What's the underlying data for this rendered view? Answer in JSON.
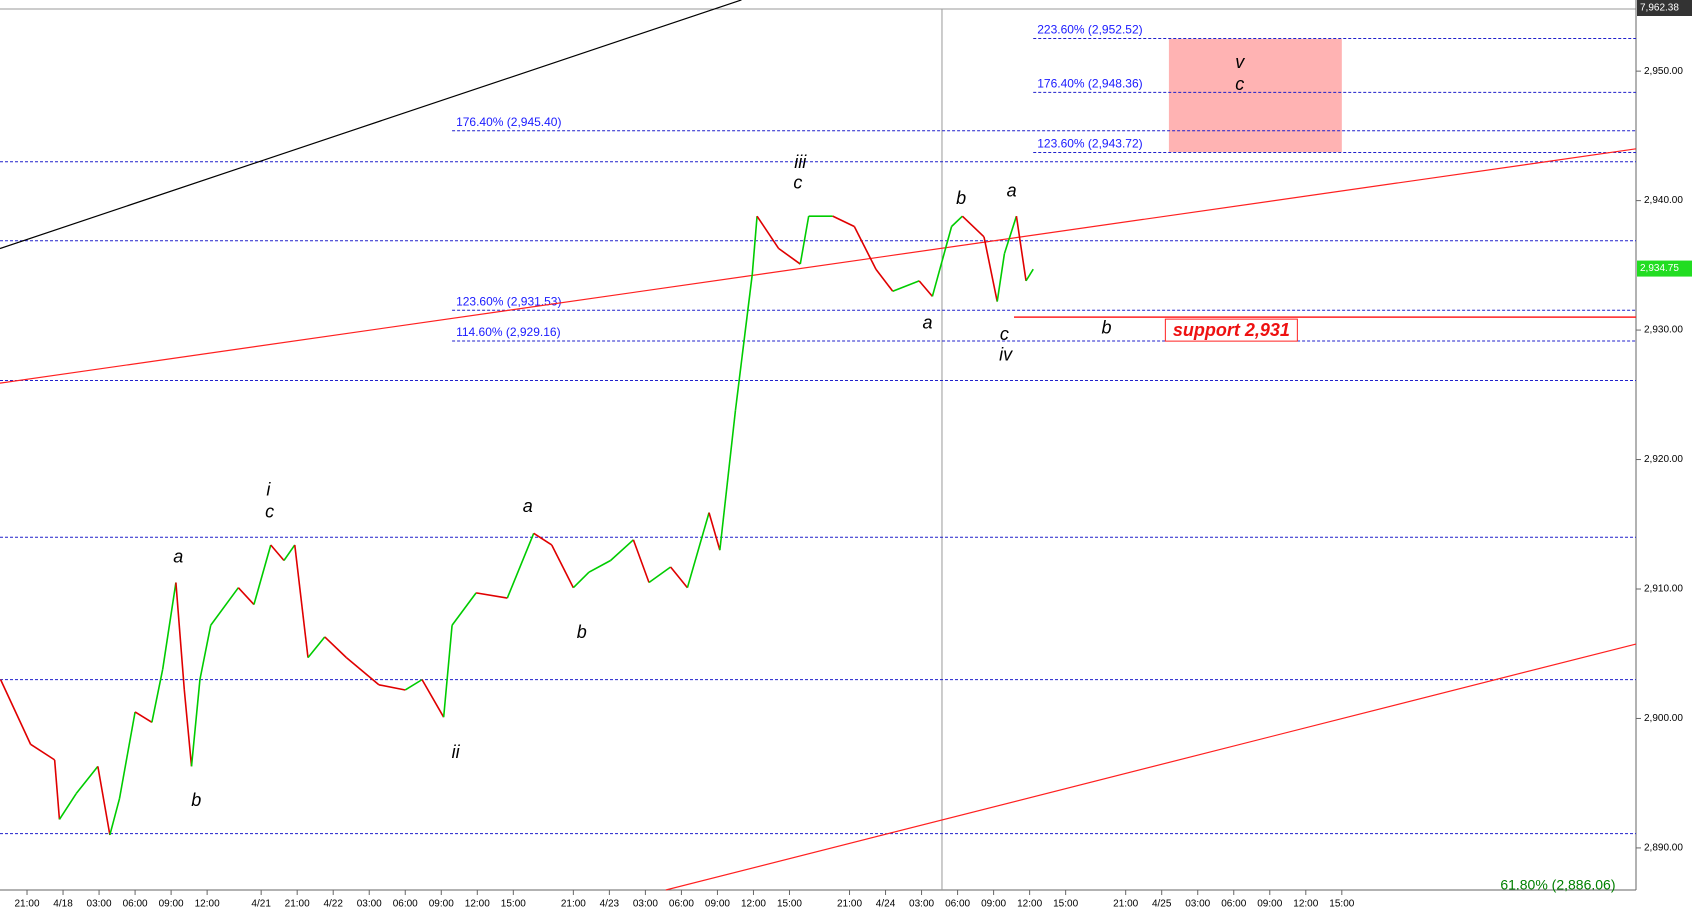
{
  "chart_data": {
    "type": "line",
    "x": [
      -2.2,
      0.3,
      2.3,
      2.7,
      4.1,
      5.9,
      6.9,
      7.7,
      9,
      10.4,
      11.3,
      12.4,
      13.1,
      13.7,
      14.4,
      15.3,
      17.6,
      18.9,
      20.3,
      21.4,
      22.3,
      23.4,
      24.8,
      26.6,
      29.3,
      31.5,
      32.9,
      34.7,
      35.4,
      37.4,
      40,
      42.2,
      43.7,
      45.5,
      46.8,
      48.6,
      50.5,
      51.8,
      53.6,
      55,
      56.8,
      57.7,
      59,
      60.4,
      60.8,
      62.6,
      64.4,
      65.1,
      67.1,
      68.9,
      70.7,
      72.1,
      74.3,
      75.4,
      77,
      77.9,
      79.7,
      80.8,
      81.4,
      82.4,
      83.2,
      83.8
    ],
    "values": [
      2903,
      2898,
      2896.8,
      2892.2,
      2894.2,
      2896.3,
      2891,
      2893.8,
      2900.5,
      2899.7,
      2903.8,
      2910.5,
      2902.2,
      2896.3,
      2903,
      2907.2,
      2910.1,
      2908.8,
      2913.4,
      2912.2,
      2913.4,
      2904.7,
      2906.3,
      2904.7,
      2902.6,
      2902.2,
      2903,
      2900.1,
      2907.2,
      2909.7,
      2909.3,
      2914.3,
      2913.4,
      2910.1,
      2911.3,
      2912.2,
      2913.8,
      2910.5,
      2911.7,
      2910.1,
      2915.9,
      2913,
      2923.8,
      2934.3,
      2938.8,
      2936.3,
      2935.1,
      2938.8,
      2938.8,
      2938,
      2934.7,
      2933,
      2933.8,
      2932.6,
      2938,
      2938.8,
      2937.2,
      2932.2,
      2935.9,
      2938.8,
      2933.8,
      2934.7
    ],
    "up_color": "#00cc00",
    "down_color": "#e00000",
    "xlim": [
      -2.25,
      134
    ],
    "xticks": [
      {
        "value": 0,
        "label": "21:00"
      },
      {
        "value": 3,
        "label": "4/18"
      },
      {
        "value": 6,
        "label": "03:00"
      },
      {
        "value": 9,
        "label": "06:00"
      },
      {
        "value": 12,
        "label": "09:00"
      },
      {
        "value": 15,
        "label": "12:00"
      },
      {
        "value": 19.5,
        "label": "4/21"
      },
      {
        "value": 22.5,
        "label": "21:00"
      },
      {
        "value": 25.5,
        "label": "4/22"
      },
      {
        "value": 28.5,
        "label": "03:00"
      },
      {
        "value": 31.5,
        "label": "06:00"
      },
      {
        "value": 34.5,
        "label": "09:00"
      },
      {
        "value": 37.5,
        "label": "12:00"
      },
      {
        "value": 40.5,
        "label": "15:00"
      },
      {
        "value": 45.5,
        "label": "21:00"
      },
      {
        "value": 48.5,
        "label": "4/23"
      },
      {
        "value": 51.5,
        "label": "03:00"
      },
      {
        "value": 54.5,
        "label": "06:00"
      },
      {
        "value": 57.5,
        "label": "09:00"
      },
      {
        "value": 60.5,
        "label": "12:00"
      },
      {
        "value": 63.5,
        "label": "15:00"
      },
      {
        "value": 68.5,
        "label": "21:00"
      },
      {
        "value": 71.5,
        "label": "4/24"
      },
      {
        "value": 74.5,
        "label": "03:00"
      },
      {
        "value": 77.5,
        "label": "06:00"
      },
      {
        "value": 80.5,
        "label": "09:00"
      },
      {
        "value": 83.5,
        "label": "12:00"
      },
      {
        "value": 86.5,
        "label": "15:00"
      },
      {
        "value": 91.5,
        "label": "21:00"
      },
      {
        "value": 94.5,
        "label": "4/25"
      },
      {
        "value": 97.5,
        "label": "03:00"
      },
      {
        "value": 100.5,
        "label": "06:00"
      },
      {
        "value": 103.5,
        "label": "09:00"
      },
      {
        "value": 106.5,
        "label": "12:00"
      },
      {
        "value": 109.5,
        "label": "15:00"
      }
    ],
    "ylim": [
      2886.75,
      2954.8
    ],
    "yticks": [
      {
        "value": 2890,
        "label": "2,890.00"
      },
      {
        "value": 2900,
        "label": "2,900.00"
      },
      {
        "value": 2910,
        "label": "2,910.00"
      },
      {
        "value": 2920,
        "label": "2,920.00"
      },
      {
        "value": 2930,
        "label": "2,930.00"
      },
      {
        "value": 2940,
        "label": "2,940.00"
      },
      {
        "value": 2950,
        "label": "2,950.00"
      }
    ],
    "top_tag": "7,962.38",
    "last_price": {
      "value": 2934.75,
      "label": "2,934.75"
    },
    "levels": [
      2943,
      2936.9,
      2926.1,
      2914,
      2903,
      2891.1
    ],
    "fibs": [
      {
        "label": "223.60% (2,952.52)",
        "value": 2952.52,
        "x_start": 83.8
      },
      {
        "label": "176.40% (2,948.36)",
        "value": 2948.36,
        "x_start": 83.8
      },
      {
        "label": "123.60% (2,943.72)",
        "value": 2943.72,
        "x_start": 83.8
      },
      {
        "label": "176.40% (2,945.40)",
        "value": 2945.4,
        "x_start": 35.4
      },
      {
        "label": "123.60% (2,931.53)",
        "value": 2931.53,
        "x_start": 35.4
      },
      {
        "label": "114.60% (2,929.16)",
        "value": 2929.16,
        "x_start": 35.4
      }
    ],
    "bottom_fib": {
      "label": "61.80% (2,886.06)",
      "value": 2886.06,
      "x_start": 122.7
    },
    "trendlines": [
      {
        "color": "#000000",
        "x1": -2.25,
        "y1": 2936.3,
        "x2": 59.5,
        "y2": 2955.5
      },
      {
        "color": "#ff2020",
        "x1": -2.25,
        "y1": 2925.9,
        "x2": 134,
        "y2": 2944
      },
      {
        "color": "#ff2020",
        "x1": 53.2,
        "y1": 2886.75,
        "x2": 134,
        "y2": 2905.75
      }
    ],
    "support": {
      "label": "support 2,931",
      "value": 2931,
      "x_start": 82.2,
      "label_x": 100.3
    },
    "target_box": {
      "x1": 95.1,
      "x2": 109.5,
      "y1": 2943.75,
      "y2": 2952.5,
      "color": "#ffb3b3"
    },
    "cursor_x": 76.2,
    "waves": [
      {
        "text": "a",
        "x": 12.6,
        "y": 2912.4
      },
      {
        "text": "b",
        "x": 14.1,
        "y": 2893.6
      },
      {
        "text": "i",
        "x": 20.1,
        "y": 2917.6
      },
      {
        "text": "c",
        "x": 20.2,
        "y": 2915.9
      },
      {
        "text": "ii",
        "x": 35.7,
        "y": 2897.3
      },
      {
        "text": "a",
        "x": 41.7,
        "y": 2916.3
      },
      {
        "text": "b",
        "x": 46.2,
        "y": 2906.6
      },
      {
        "text": "iii",
        "x": 64.4,
        "y": 2942.9
      },
      {
        "text": "c",
        "x": 64.2,
        "y": 2941.3
      },
      {
        "text": "b",
        "x": 77.8,
        "y": 2940.1
      },
      {
        "text": "a",
        "x": 82,
        "y": 2940.7
      },
      {
        "text": "a",
        "x": 75,
        "y": 2930.5
      },
      {
        "text": "c",
        "x": 81.4,
        "y": 2929.6
      },
      {
        "text": "iv",
        "x": 81.5,
        "y": 2928
      },
      {
        "text": "b",
        "x": 89.9,
        "y": 2930.1
      },
      {
        "text": "v",
        "x": 101,
        "y": 2950.6
      },
      {
        "text": "c",
        "x": 101,
        "y": 2948.9
      }
    ]
  }
}
